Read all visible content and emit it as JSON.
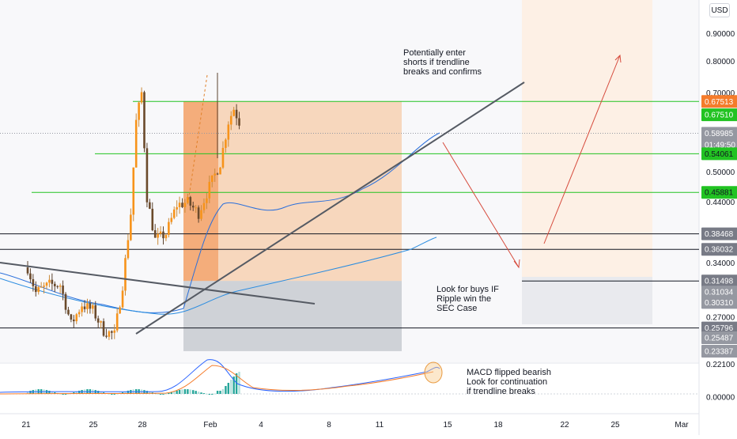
{
  "currency_button": "USD",
  "chart_data": {
    "type": "candlestick",
    "price_axis": {
      "scale": "log",
      "ticks": [
        "0.90000",
        "0.80000",
        "0.70000",
        "0.50000",
        "0.44000",
        "0.34000",
        "0.27000",
        "0.22100",
        "0.00000"
      ]
    },
    "time_axis": {
      "ticks": [
        "21",
        "25",
        "28",
        "Feb",
        "4",
        "8",
        "11",
        "15",
        "18",
        "22",
        "25",
        "Mar"
      ]
    },
    "price_badges": [
      {
        "label": "0.67513",
        "color": "#f57c2b",
        "text": "#ffffff"
      },
      {
        "label": "0.67510",
        "color": "#22c322",
        "text": "#ffffff"
      },
      {
        "label": "0.58985",
        "color": "#9598a1",
        "text": "#ffffff"
      },
      {
        "label": "01:49:50",
        "color": "#9598a1",
        "text": "#ffffff"
      },
      {
        "label": "0.54061",
        "color": "#22c322",
        "text": "#131722"
      },
      {
        "label": "0.45881",
        "color": "#22c322",
        "text": "#131722"
      },
      {
        "label": "0.38468",
        "color": "#787b86",
        "text": "#ffffff"
      },
      {
        "label": "0.36032",
        "color": "#787b86",
        "text": "#ffffff"
      },
      {
        "label": "0.31498",
        "color": "#787b86",
        "text": "#ffffff"
      },
      {
        "label": "0.31034",
        "color": "#9598a1",
        "text": "#ffffff"
      },
      {
        "label": "0.30310",
        "color": "#9598a1",
        "text": "#ffffff"
      },
      {
        "label": "0.25796",
        "color": "#787b86",
        "text": "#ffffff"
      },
      {
        "label": "0.25487",
        "color": "#9598a1",
        "text": "#ffffff"
      },
      {
        "label": "0.23387",
        "color": "#9598a1",
        "text": "#ffffff"
      }
    ],
    "horizontal_levels": [
      {
        "value": 0.6751,
        "color": "#22c322"
      },
      {
        "value": 0.5406,
        "color": "#22c322"
      },
      {
        "value": 0.4588,
        "color": "#22c322"
      },
      {
        "value": 0.3847,
        "color": "#131722"
      },
      {
        "value": 0.3603,
        "color": "#131722"
      },
      {
        "value": 0.315,
        "color": "#131722"
      },
      {
        "value": 0.258,
        "color": "#131722"
      }
    ],
    "annotations": [
      {
        "lines": [
          "Potentially enter",
          "shorts if trendline",
          "breaks and confirms"
        ]
      },
      {
        "lines": [
          "Look for buys IF",
          "Ripple win the",
          "SEC Case"
        ]
      },
      {
        "lines": [
          "MACD flipped bearish",
          "Look for continuation",
          "if trendline breaks"
        ]
      }
    ],
    "price_path": [
      [
        0.305,
        0.33
      ],
      [
        3,
        0.3
      ],
      [
        8,
        0.31
      ],
      [
        12,
        0.31
      ],
      [
        16,
        0.262
      ],
      [
        20,
        0.285
      ],
      [
        24,
        0.278
      ],
      [
        28,
        0.255
      ],
      [
        32,
        0.2505
      ],
      [
        35,
        0.31
      ],
      [
        38,
        0.42
      ],
      [
        40,
        0.62
      ],
      [
        42,
        0.7
      ],
      [
        44,
        0.45
      ],
      [
        47,
        0.375
      ],
      [
        51,
        0.385
      ],
      [
        55,
        0.435
      ],
      [
        59,
        0.44
      ],
      [
        63,
        0.42
      ],
      [
        67,
        0.47
      ],
      [
        71,
        0.52
      ],
      [
        74,
        0.62
      ],
      [
        76,
        0.655
      ],
      [
        78,
        0.62
      ]
    ],
    "volume_note": "",
    "colors": {
      "up": "#f7931a",
      "down": "#6b4a2b",
      "level_green": "#22c322",
      "orange_zone": "#f5a05a",
      "grey_zone": "#b2b5be"
    }
  }
}
